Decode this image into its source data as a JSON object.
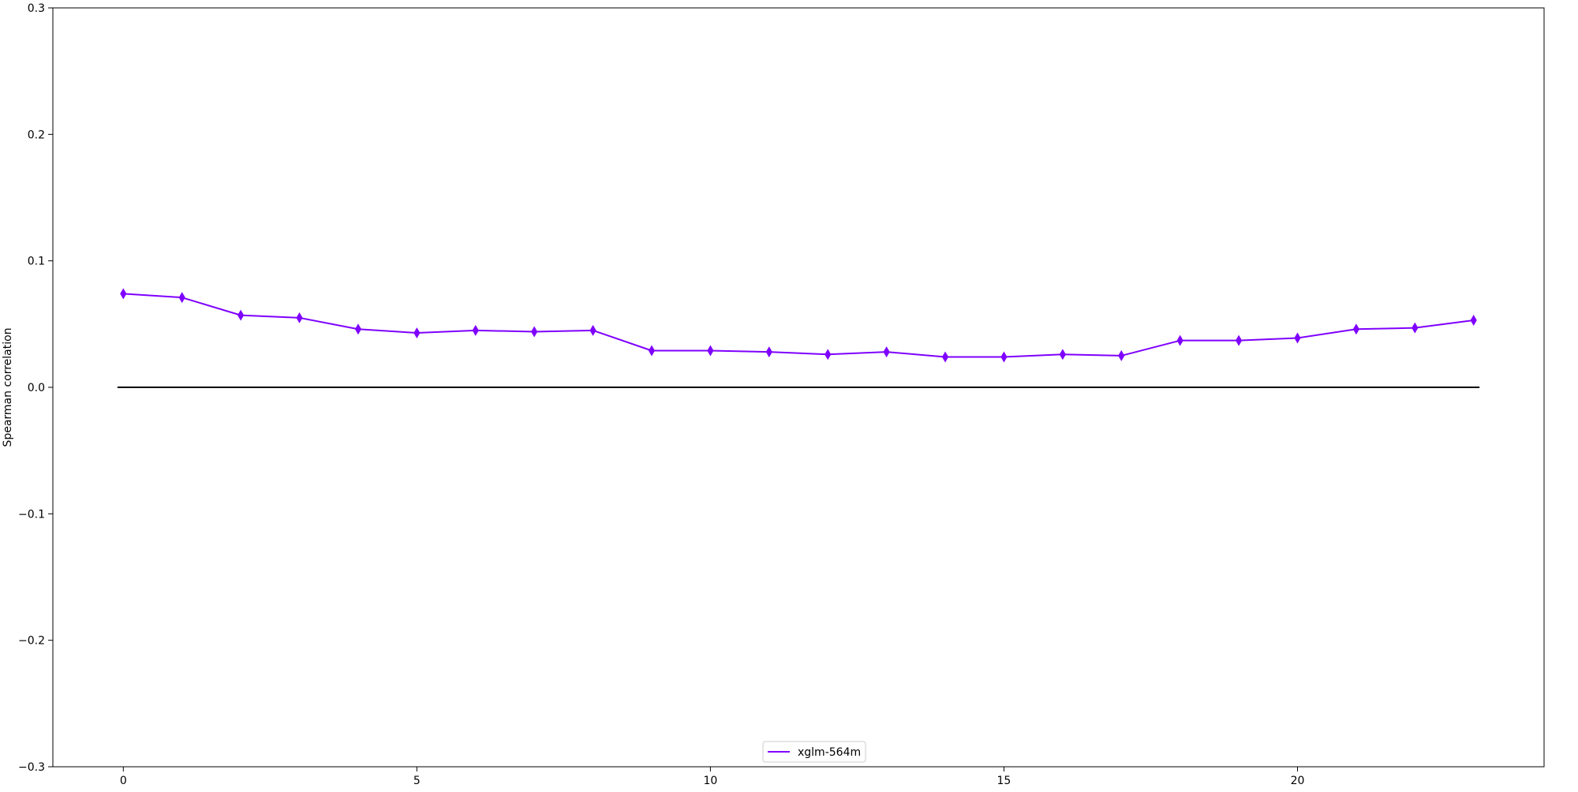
{
  "chart_data": {
    "type": "line",
    "title": "",
    "xlabel": "",
    "ylabel": "Spearman correlation",
    "xlim": [
      -1.2,
      24.2
    ],
    "ylim": [
      -0.3,
      0.3
    ],
    "x_ticks": [
      0,
      5,
      10,
      15,
      20
    ],
    "y_ticks": [
      -0.3,
      -0.2,
      -0.1,
      0.0,
      0.1,
      0.2,
      0.3
    ],
    "x_tick_labels": [
      "0",
      "5",
      "10",
      "15",
      "20"
    ],
    "y_tick_labels": [
      "−0.3",
      "−0.2",
      "−0.1",
      "0.0",
      "0.1",
      "0.2",
      "0.3"
    ],
    "grid": false,
    "legend_position": "lower center",
    "marker": "thin_diamond",
    "series": [
      {
        "name": "xglm-564m",
        "color": "#7f00ff",
        "x": [
          0,
          1,
          2,
          3,
          4,
          5,
          6,
          7,
          8,
          9,
          10,
          11,
          12,
          13,
          14,
          15,
          16,
          17,
          18,
          19,
          20,
          21,
          22,
          23
        ],
        "values": [
          0.074,
          0.071,
          0.057,
          0.055,
          0.046,
          0.043,
          0.045,
          0.044,
          0.045,
          0.029,
          0.029,
          0.028,
          0.026,
          0.028,
          0.024,
          0.024,
          0.026,
          0.025,
          0.037,
          0.037,
          0.039,
          0.046,
          0.047,
          0.053
        ]
      }
    ],
    "reference_line": {
      "y": 0.0,
      "x_start": -0.1,
      "x_end": 23.1,
      "color": "#000000"
    }
  }
}
